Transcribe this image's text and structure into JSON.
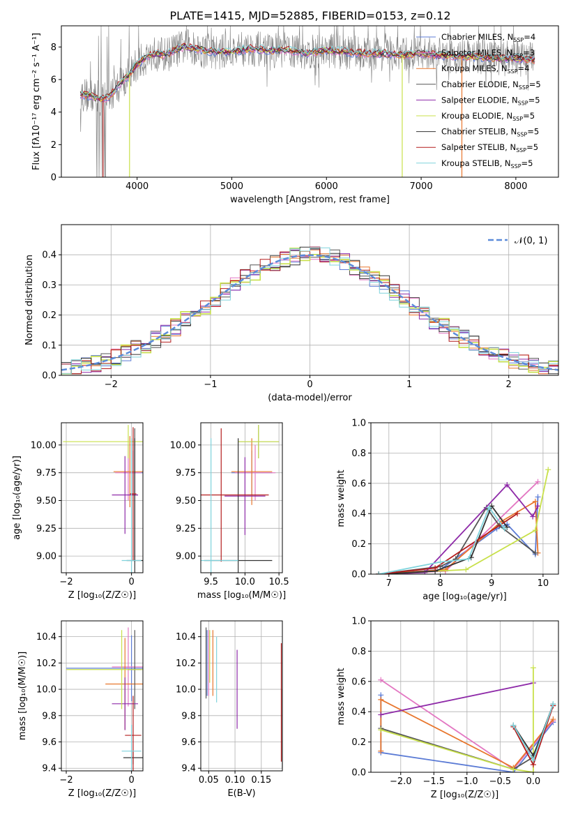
{
  "figure": {
    "title": "PLATE=1415, MJD=52885, FIBERID=0153, z=0.12"
  },
  "colors": {
    "Chabrier MILES": "#5b7bd5",
    "Salpeter MILES": "#e377c2",
    "Kroupa MILES": "#e8762d",
    "Chabrier ELODIE": "#555555",
    "Salpeter ELODIE": "#8e2aa8",
    "Kroupa ELODIE": "#c8e04a",
    "Chabrier STELIB": "#333333",
    "Salpeter STELIB": "#b41c1c",
    "Kroupa STELIB": "#7fd3dc",
    "data": "#808080",
    "normal": "#5b8bd9",
    "grid": "#b0b0b0"
  },
  "legend_spectrum": [
    {
      "label": "Chabrier MILES, N",
      "sub": "SSP",
      "tail": "=4"
    },
    {
      "label": "Salpeter MILES, N",
      "sub": "SSP",
      "tail": "=3"
    },
    {
      "label": "Kroupa MILES, N",
      "sub": "SSP",
      "tail": "=4"
    },
    {
      "label": "Chabrier ELODIE, N",
      "sub": "SSP",
      "tail": "=5"
    },
    {
      "label": "Salpeter ELODIE, N",
      "sub": "SSP",
      "tail": "=5"
    },
    {
      "label": "Kroupa ELODIE, N",
      "sub": "SSP",
      "tail": "=5"
    },
    {
      "label": "Chabrier STELIB, N",
      "sub": "SSP",
      "tail": "=5"
    },
    {
      "label": "Salpeter STELIB, N",
      "sub": "SSP",
      "tail": "=5"
    },
    {
      "label": "Kroupa STELIB, N",
      "sub": "SSP",
      "tail": "=5"
    }
  ],
  "legend_hist": {
    "label": "𝒩(0, 1)"
  },
  "chart_data": [
    {
      "panel": "spectrum",
      "type": "line",
      "xlabel": "wavelength [Angstrom, rest frame]",
      "ylabel": "Flux [f_λ 10^-17 erg cm^-2 s^-1 A^-1]",
      "xlim": [
        3200,
        8450
      ],
      "ylim": [
        0,
        9.3
      ],
      "xticks": [
        4000,
        5000,
        6000,
        7000,
        8000
      ],
      "yticks": [
        0,
        2,
        4,
        6,
        8
      ],
      "continuum": {
        "x": [
          3400,
          3500,
          3600,
          3700,
          3800,
          3900,
          4000,
          4100,
          4200,
          4300,
          4400,
          4500,
          4600,
          4800,
          5000,
          5200,
          5400,
          5600,
          5800,
          6000,
          6200,
          6400,
          6600,
          6800,
          7000,
          7200,
          7400,
          7600,
          7800,
          8000,
          8200
        ],
        "y": [
          5.1,
          5.0,
          4.8,
          4.9,
          5.6,
          6.2,
          6.9,
          7.4,
          7.6,
          7.5,
          7.8,
          8.0,
          7.9,
          7.7,
          7.7,
          7.9,
          7.8,
          7.8,
          7.6,
          7.8,
          7.7,
          7.6,
          7.6,
          7.5,
          7.6,
          7.5,
          7.4,
          7.4,
          7.3,
          7.3,
          7.2
        ]
      },
      "grid": false
    },
    {
      "panel": "residual-histogram",
      "type": "bar",
      "xlabel": "(data-model)/error",
      "ylabel": "Normed distribution",
      "xlim": [
        -2.5,
        2.5
      ],
      "ylim": [
        0,
        0.5
      ],
      "xticks": [
        -2,
        -1,
        0,
        1,
        2
      ],
      "yticks": [
        0.0,
        0.1,
        0.2,
        0.3,
        0.4
      ],
      "bin_width": 0.1,
      "grid": true,
      "normal_curve": {
        "mu": 0,
        "sigma": 1
      }
    },
    {
      "panel": "age-vs-Z",
      "type": "scatter",
      "xlabel": "Z [log10(Z/Z⊙)]",
      "ylabel": "age [log10(age/yr)]",
      "xlim": [
        -2.15,
        0.35
      ],
      "ylim": [
        8.85,
        10.2
      ],
      "xticks": [
        -2,
        0
      ],
      "yticks": [
        9.0,
        9.25,
        9.5,
        9.75,
        10.0
      ],
      "points": [
        {
          "model": "Chabrier MILES",
          "x": 0.05,
          "y": 9.75,
          "xerr": 0.3,
          "yerr": 0.2
        },
        {
          "model": "Salpeter MILES",
          "x": -0.1,
          "y": 9.75,
          "xerr": 0.4,
          "yerr": 0.25
        },
        {
          "model": "Kroupa MILES",
          "x": -0.05,
          "y": 9.76,
          "xerr": 0.5,
          "yerr": 0.32
        },
        {
          "model": "Chabrier ELODIE",
          "x": 0.1,
          "y": 9.55,
          "xerr": 0.1,
          "yerr": 0.6
        },
        {
          "model": "Salpeter ELODIE",
          "x": -0.2,
          "y": 9.55,
          "xerr": 0.4,
          "yerr": 0.35
        },
        {
          "model": "Kroupa ELODIE",
          "x": -0.1,
          "y": 10.03,
          "xerr": 2.0,
          "yerr": 0.15
        },
        {
          "model": "Chabrier STELIB",
          "x": 0.1,
          "y": 8.96,
          "xerr": 0.25,
          "yerr": 1.1
        },
        {
          "model": "Salpeter STELIB",
          "x": 0.05,
          "y": 9.56,
          "xerr": 0.1,
          "yerr": 0.6
        },
        {
          "model": "Kroupa STELIB",
          "x": 0.0,
          "y": 8.96,
          "xerr": 0.3,
          "yerr": 1.1
        }
      ],
      "grid": true
    },
    {
      "panel": "age-vs-mass",
      "type": "scatter",
      "xlabel": "mass [log10(M/M⊙)]",
      "ylabel": "",
      "xlim": [
        9.35,
        10.55
      ],
      "ylim": [
        8.85,
        10.2
      ],
      "xticks": [
        9.5,
        10.0,
        10.5
      ],
      "yticks": [
        9.0,
        9.25,
        9.5,
        9.75,
        10.0
      ],
      "points": [
        {
          "model": "Chabrier MILES",
          "x": 10.1,
          "y": 9.75,
          "xerr": 0.3,
          "yerr": 0.2
        },
        {
          "model": "Salpeter MILES",
          "x": 10.15,
          "y": 9.75,
          "xerr": 0.3,
          "yerr": 0.25
        },
        {
          "model": "Kroupa MILES",
          "x": 10.1,
          "y": 9.76,
          "xerr": 0.3,
          "yerr": 0.3
        },
        {
          "model": "Chabrier ELODIE",
          "x": 10.2,
          "y": 10.03,
          "xerr": 0.3,
          "yerr": 0.15
        },
        {
          "model": "Salpeter ELODIE",
          "x": 10.0,
          "y": 9.54,
          "xerr": 0.3,
          "yerr": 0.35
        },
        {
          "model": "Kroupa ELODIE",
          "x": 10.2,
          "y": 10.03,
          "xerr": 0.3,
          "yerr": 0.15
        },
        {
          "model": "Chabrier STELIB",
          "x": 9.9,
          "y": 8.96,
          "xerr": 0.5,
          "yerr": 1.1
        },
        {
          "model": "Salpeter STELIB",
          "x": 9.65,
          "y": 9.55,
          "xerr": 0.7,
          "yerr": 0.6
        },
        {
          "model": "Kroupa STELIB",
          "x": 9.5,
          "y": 8.96,
          "xerr": 0.4,
          "yerr": 1.1
        }
      ],
      "grid": true
    },
    {
      "panel": "mass-weight-vs-age",
      "type": "line",
      "xlabel": "age  [log10(age/yr)]",
      "ylabel": "mass weight",
      "xlim": [
        6.65,
        10.3
      ],
      "ylim": [
        0,
        1.0
      ],
      "xticks": [
        7,
        8,
        9,
        10
      ],
      "yticks": [
        0.0,
        0.2,
        0.4,
        0.6,
        0.8,
        1.0
      ],
      "series": [
        {
          "model": "Chabrier MILES",
          "x": [
            6.8,
            8.0,
            9.1,
            9.3,
            9.85,
            9.9
          ],
          "y": [
            0.0,
            0.03,
            0.3,
            0.33,
            0.13,
            0.51
          ]
        },
        {
          "model": "Salpeter MILES",
          "x": [
            6.8,
            8.1,
            9.9
          ],
          "y": [
            0.0,
            0.02,
            0.61
          ]
        },
        {
          "model": "Kroupa MILES",
          "x": [
            6.8,
            8.1,
            9.2,
            9.85,
            9.9
          ],
          "y": [
            0.0,
            0.03,
            0.35,
            0.48,
            0.14
          ]
        },
        {
          "model": "Chabrier ELODIE",
          "x": [
            6.8,
            8.0,
            8.3,
            8.9,
            9.15,
            9.85
          ],
          "y": [
            0.0,
            0.05,
            0.1,
            0.44,
            0.32,
            0.14
          ]
        },
        {
          "model": "Salpeter ELODIE",
          "x": [
            6.8,
            7.7,
            9.3,
            9.8,
            9.9
          ],
          "y": [
            0.0,
            0.01,
            0.59,
            0.38,
            0.45
          ]
        },
        {
          "model": "Kroupa ELODIE",
          "x": [
            6.8,
            8.5,
            9.85,
            10.1
          ],
          "y": [
            0.0,
            0.03,
            0.29,
            0.69
          ]
        },
        {
          "model": "Chabrier STELIB",
          "x": [
            6.8,
            7.9,
            8.6,
            9.0,
            9.3
          ],
          "y": [
            0.0,
            0.02,
            0.11,
            0.45,
            0.31
          ]
        },
        {
          "model": "Salpeter STELIB",
          "x": [
            6.8,
            7.9,
            9.5
          ],
          "y": [
            0.0,
            0.04,
            0.4
          ]
        },
        {
          "model": "Kroupa STELIB",
          "x": [
            6.8,
            8.0,
            8.55,
            8.95,
            9.25
          ],
          "y": [
            0.0,
            0.08,
            0.1,
            0.44,
            0.3
          ]
        }
      ],
      "grid": true
    },
    {
      "panel": "mass-vs-Z",
      "type": "scatter",
      "xlabel": "Z [log10(Z/Z⊙)]",
      "ylabel": "mass [log10(M/M⊙)]",
      "xlim": [
        -2.15,
        0.35
      ],
      "ylim": [
        9.38,
        10.52
      ],
      "xticks": [
        -2,
        0
      ],
      "yticks": [
        9.4,
        9.6,
        9.8,
        10.0,
        10.2,
        10.4
      ],
      "points": [
        {
          "model": "Chabrier MILES",
          "x": 0.0,
          "y": 10.16,
          "xerr": 2.0,
          "yerr": 0.25
        },
        {
          "model": "Salpeter MILES",
          "x": -0.1,
          "y": 10.17,
          "xerr": 0.5,
          "yerr": 0.3
        },
        {
          "model": "Kroupa MILES",
          "x": -0.2,
          "y": 10.04,
          "xerr": 0.6,
          "yerr": 0.35
        },
        {
          "model": "Chabrier ELODIE",
          "x": 0.1,
          "y": 10.15,
          "xerr": 0.2,
          "yerr": 0.3
        },
        {
          "model": "Salpeter ELODIE",
          "x": -0.2,
          "y": 9.89,
          "xerr": 0.4,
          "yerr": 0.2
        },
        {
          "model": "Kroupa ELODIE",
          "x": -0.3,
          "y": 10.15,
          "xerr": 1.7,
          "yerr": 0.3
        },
        {
          "model": "Chabrier STELIB",
          "x": 0.05,
          "y": 9.48,
          "xerr": 0.3,
          "yerr": 0.05
        },
        {
          "model": "Salpeter STELIB",
          "x": 0.05,
          "y": 9.65,
          "xerr": 0.25,
          "yerr": 0.3
        },
        {
          "model": "Kroupa STELIB",
          "x": 0.0,
          "y": 9.53,
          "xerr": 0.3,
          "yerr": 0.2
        }
      ],
      "grid": true
    },
    {
      "panel": "mass-vs-EBV",
      "type": "scatter",
      "xlabel": "E(B-V)",
      "ylabel": "",
      "xlim": [
        0.035,
        0.19
      ],
      "ylim": [
        9.38,
        10.52
      ],
      "xticks": [
        0.05,
        0.1,
        0.15
      ],
      "yticks": [
        9.4,
        9.6,
        9.8,
        10.0,
        10.2,
        10.4
      ],
      "points": [
        {
          "model": "Chabrier MILES",
          "x": 0.047,
          "y": 10.2,
          "yerr": 0.25
        },
        {
          "model": "Salpeter MILES",
          "x": 0.05,
          "y": 10.2,
          "yerr": 0.25
        },
        {
          "model": "Kroupa MILES",
          "x": 0.058,
          "y": 10.2,
          "yerr": 0.25
        },
        {
          "model": "Chabrier ELODIE",
          "x": 0.045,
          "y": 10.2,
          "yerr": 0.27
        },
        {
          "model": "Salpeter ELODIE",
          "x": 0.104,
          "y": 10.0,
          "yerr": 0.3
        },
        {
          "model": "Kroupa ELODIE",
          "x": 0.052,
          "y": 10.25,
          "yerr": 0.2
        },
        {
          "model": "Chabrier STELIB",
          "x": 0.19,
          "y": 9.7,
          "yerr": 0.3
        },
        {
          "model": "Salpeter STELIB",
          "x": 0.188,
          "y": 9.9,
          "yerr": 0.45
        },
        {
          "model": "Kroupa STELIB",
          "x": 0.065,
          "y": 10.15,
          "yerr": 0.25
        }
      ],
      "grid": true
    },
    {
      "panel": "mass-weight-vs-Z",
      "type": "line",
      "xlabel": "Z [log10(Z/Z⊙)]",
      "ylabel": "mass weight",
      "xlim": [
        -2.45,
        0.38
      ],
      "ylim": [
        0,
        1.0
      ],
      "xticks": [
        -2.0,
        -1.5,
        -1.0,
        -0.5,
        0.0
      ],
      "yticks": [
        0.0,
        0.2,
        0.4,
        0.6,
        0.8,
        1.0
      ],
      "series": [
        {
          "model": "Chabrier MILES",
          "x": [
            -2.3,
            -2.3,
            -0.3,
            0.3
          ],
          "y": [
            0.51,
            0.13,
            0.0,
            0.33
          ]
        },
        {
          "model": "Salpeter MILES",
          "x": [
            -2.3,
            -0.3,
            0.3
          ],
          "y": [
            0.61,
            0.02,
            0.34
          ]
        },
        {
          "model": "Kroupa MILES",
          "x": [
            -2.3,
            -2.3,
            -0.3,
            0.3
          ],
          "y": [
            0.14,
            0.48,
            0.03,
            0.35
          ]
        },
        {
          "model": "Chabrier ELODIE",
          "x": [
            -2.3,
            -0.3,
            0.0,
            0.3
          ],
          "y": [
            0.29,
            0.02,
            0.1,
            0.45
          ]
        },
        {
          "model": "Salpeter ELODIE",
          "x": [
            -2.3,
            0.0
          ],
          "y": [
            0.38,
            0.59
          ]
        },
        {
          "model": "Kroupa ELODIE",
          "x": [
            -2.3,
            -0.3,
            0.0,
            0.0
          ],
          "y": [
            0.28,
            0.02,
            0.0,
            0.69
          ]
        },
        {
          "model": "Chabrier STELIB",
          "x": [
            -0.3,
            0.0,
            0.3
          ],
          "y": [
            0.31,
            0.11,
            0.44
          ]
        },
        {
          "model": "Salpeter STELIB",
          "x": [
            -0.3,
            0.0,
            0.3
          ],
          "y": [
            0.3,
            0.05,
            0.44
          ]
        },
        {
          "model": "Kroupa STELIB",
          "x": [
            -0.3,
            0.0,
            0.3
          ],
          "y": [
            0.31,
            0.08,
            0.45
          ]
        }
      ],
      "grid": true
    }
  ]
}
